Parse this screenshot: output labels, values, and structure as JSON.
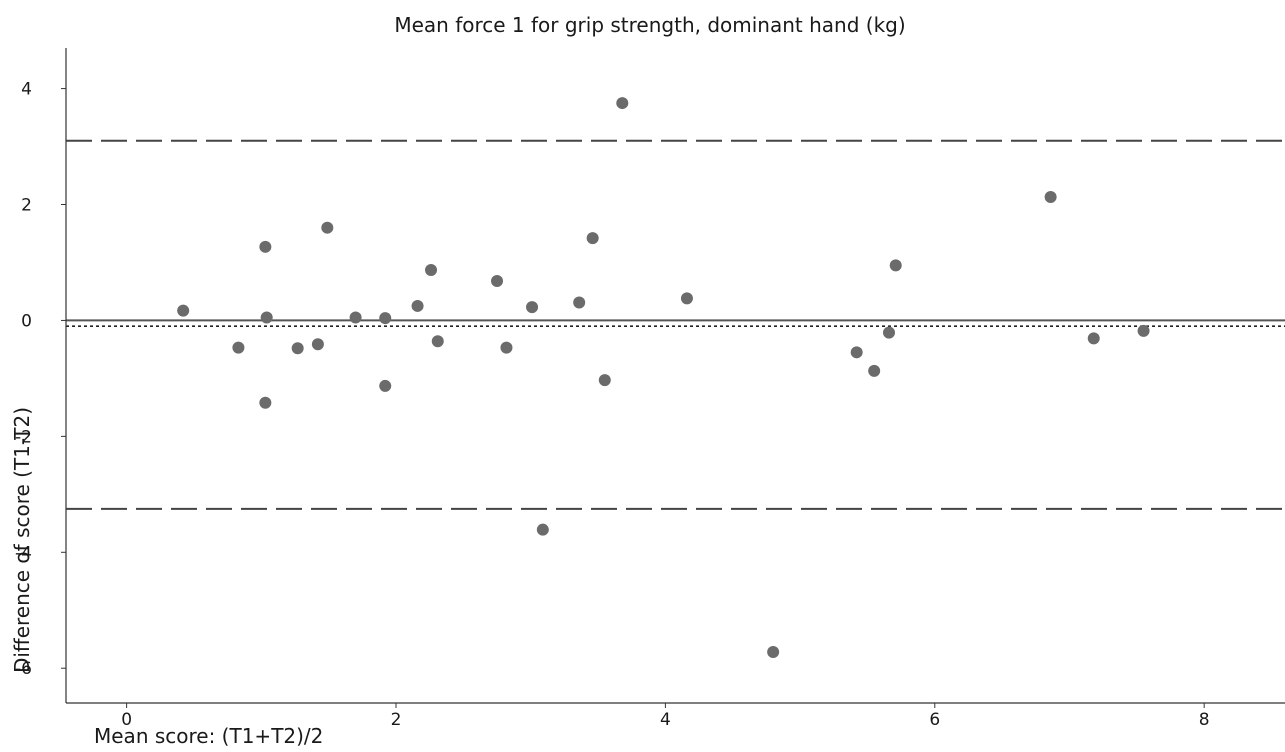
{
  "chart_data": {
    "type": "scatter",
    "title": "Mean force 1 for grip strength, dominant hand (kg)",
    "xlabel": "Mean score: (T1+T2)/2",
    "ylabel": "Difference  of score (T1-T2)",
    "xlim": [
      -0.45,
      8.6
    ],
    "ylim": [
      -6.6,
      4.7
    ],
    "x_ticks": [
      0,
      2,
      4,
      6,
      8
    ],
    "y_ticks": [
      4,
      2,
      0,
      -2,
      -4,
      -6
    ],
    "grid": false,
    "colors": {
      "points": "#6b6b6b",
      "lines": "#444444",
      "axis": "#333333"
    },
    "reference_lines": [
      {
        "role": "zero",
        "y": 0,
        "style": "solid"
      },
      {
        "role": "mean-difference",
        "y": -0.1,
        "style": "dotted"
      },
      {
        "role": "upper-limit-of-agreement",
        "y": 3.1,
        "style": "dashed"
      },
      {
        "role": "lower-limit-of-agreement",
        "y": -3.25,
        "style": "dashed"
      }
    ],
    "points": [
      {
        "x": 0.42,
        "y": 0.17
      },
      {
        "x": 0.83,
        "y": -0.47
      },
      {
        "x": 1.03,
        "y": 1.27
      },
      {
        "x": 1.04,
        "y": 0.05
      },
      {
        "x": 1.03,
        "y": -1.42
      },
      {
        "x": 1.27,
        "y": -0.48
      },
      {
        "x": 1.42,
        "y": -0.41
      },
      {
        "x": 1.49,
        "y": 1.6
      },
      {
        "x": 1.7,
        "y": 0.05
      },
      {
        "x": 1.92,
        "y": 0.04
      },
      {
        "x": 1.92,
        "y": -1.13
      },
      {
        "x": 2.16,
        "y": 0.25
      },
      {
        "x": 2.26,
        "y": 0.87
      },
      {
        "x": 2.31,
        "y": -0.36
      },
      {
        "x": 2.75,
        "y": 0.68
      },
      {
        "x": 2.82,
        "y": -0.47
      },
      {
        "x": 3.01,
        "y": 0.23
      },
      {
        "x": 3.09,
        "y": -3.61
      },
      {
        "x": 3.36,
        "y": 0.31
      },
      {
        "x": 3.46,
        "y": 1.42
      },
      {
        "x": 3.55,
        "y": -1.03
      },
      {
        "x": 3.68,
        "y": 3.75
      },
      {
        "x": 4.16,
        "y": 0.38
      },
      {
        "x": 4.8,
        "y": -5.72
      },
      {
        "x": 5.42,
        "y": -0.55
      },
      {
        "x": 5.55,
        "y": -0.87
      },
      {
        "x": 5.66,
        "y": -0.21
      },
      {
        "x": 5.71,
        "y": 0.95
      },
      {
        "x": 6.86,
        "y": 2.13
      },
      {
        "x": 7.18,
        "y": -0.31
      },
      {
        "x": 7.55,
        "y": -0.18
      }
    ]
  }
}
